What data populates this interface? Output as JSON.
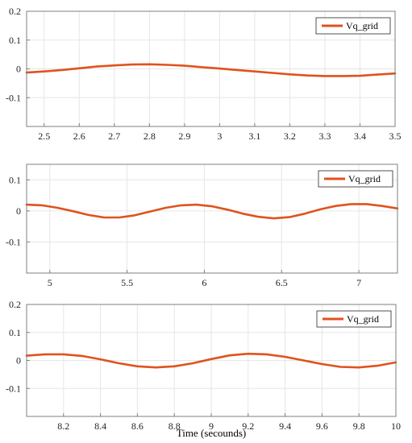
{
  "figure": {
    "xlabel": "Time (secounds)"
  },
  "colors": {
    "series": "#E0521E",
    "grid": "#E6E6E6",
    "axes": "#7F7F7F",
    "background": "#FFFFFF"
  },
  "chart_data": [
    {
      "type": "line",
      "xlim": [
        2.45,
        3.5
      ],
      "ylim": [
        -0.2,
        0.2
      ],
      "xticks": [
        "2.5",
        "2.6",
        "2.7",
        "2.8",
        "2.9",
        "3",
        "3.1",
        "3.2",
        "3.3",
        "3.4",
        "3.5"
      ],
      "xtick_values": [
        2.5,
        2.6,
        2.7,
        2.8,
        2.9,
        3.0,
        3.1,
        3.2,
        3.3,
        3.4,
        3.5
      ],
      "yticks": [
        "0.2",
        "0.1",
        "0",
        "-0.1"
      ],
      "ytick_values": [
        0.2,
        0.1,
        0,
        -0.1
      ],
      "grid": true,
      "legend": "top-right",
      "series": [
        {
          "name": "Vq_grid",
          "x": [
            2.45,
            2.5,
            2.55,
            2.6,
            2.65,
            2.7,
            2.75,
            2.8,
            2.85,
            2.9,
            2.95,
            3.0,
            3.05,
            3.1,
            3.15,
            3.2,
            3.25,
            3.3,
            3.35,
            3.4,
            3.45,
            3.5
          ],
          "y": [
            -0.013,
            -0.009,
            -0.004,
            0.002,
            0.008,
            0.012,
            0.015,
            0.016,
            0.014,
            0.011,
            0.006,
            0.001,
            -0.004,
            -0.009,
            -0.014,
            -0.019,
            -0.023,
            -0.025,
            -0.025,
            -0.024,
            -0.02,
            -0.016
          ]
        }
      ]
    },
    {
      "type": "line",
      "xlim": [
        4.85,
        7.25
      ],
      "ylim": [
        -0.2,
        0.15
      ],
      "xticks": [
        "5",
        "5.5",
        "6",
        "6.5",
        "7"
      ],
      "xtick_values": [
        5,
        5.5,
        6,
        6.5,
        7
      ],
      "yticks": [
        "0.1",
        "0",
        "-0.1"
      ],
      "ytick_values": [
        0.1,
        0,
        -0.1
      ],
      "grid": true,
      "legend": "top-right",
      "series": [
        {
          "name": "Vq_grid",
          "x": [
            4.85,
            4.95,
            5.05,
            5.15,
            5.25,
            5.35,
            5.45,
            5.55,
            5.65,
            5.75,
            5.85,
            5.95,
            6.05,
            6.15,
            6.25,
            6.35,
            6.45,
            6.55,
            6.65,
            6.75,
            6.85,
            6.95,
            7.05,
            7.15,
            7.25
          ],
          "y": [
            0.02,
            0.018,
            0.01,
            -0.001,
            -0.013,
            -0.021,
            -0.021,
            -0.014,
            -0.002,
            0.01,
            0.018,
            0.02,
            0.015,
            0.004,
            -0.009,
            -0.019,
            -0.024,
            -0.02,
            -0.009,
            0.005,
            0.016,
            0.022,
            0.022,
            0.016,
            0.008
          ]
        }
      ]
    },
    {
      "type": "line",
      "xlim": [
        8.0,
        10.0
      ],
      "ylim": [
        -0.2,
        0.2
      ],
      "xticks": [
        "8.2",
        "8.4",
        "8.6",
        "8.8",
        "9",
        "9.2",
        "9.4",
        "9.6",
        "9.8",
        "10"
      ],
      "xtick_values": [
        8.2,
        8.4,
        8.6,
        8.8,
        9.0,
        9.2,
        9.4,
        9.6,
        9.8,
        10.0
      ],
      "yticks": [
        "0.2",
        "0.1",
        "0",
        "-0.1"
      ],
      "ytick_values": [
        0.2,
        0.1,
        0,
        -0.1
      ],
      "grid": true,
      "legend": "top-right",
      "series": [
        {
          "name": "Vq_grid",
          "x": [
            8.0,
            8.1,
            8.2,
            8.3,
            8.4,
            8.5,
            8.6,
            8.7,
            8.8,
            8.9,
            9.0,
            9.1,
            9.2,
            9.3,
            9.4,
            9.5,
            9.6,
            9.7,
            9.8,
            9.9,
            10.0
          ],
          "y": [
            0.017,
            0.022,
            0.022,
            0.016,
            0.004,
            -0.01,
            -0.021,
            -0.025,
            -0.021,
            -0.01,
            0.005,
            0.018,
            0.024,
            0.022,
            0.013,
            0.0,
            -0.013,
            -0.023,
            -0.025,
            -0.019,
            -0.007
          ]
        }
      ]
    }
  ]
}
